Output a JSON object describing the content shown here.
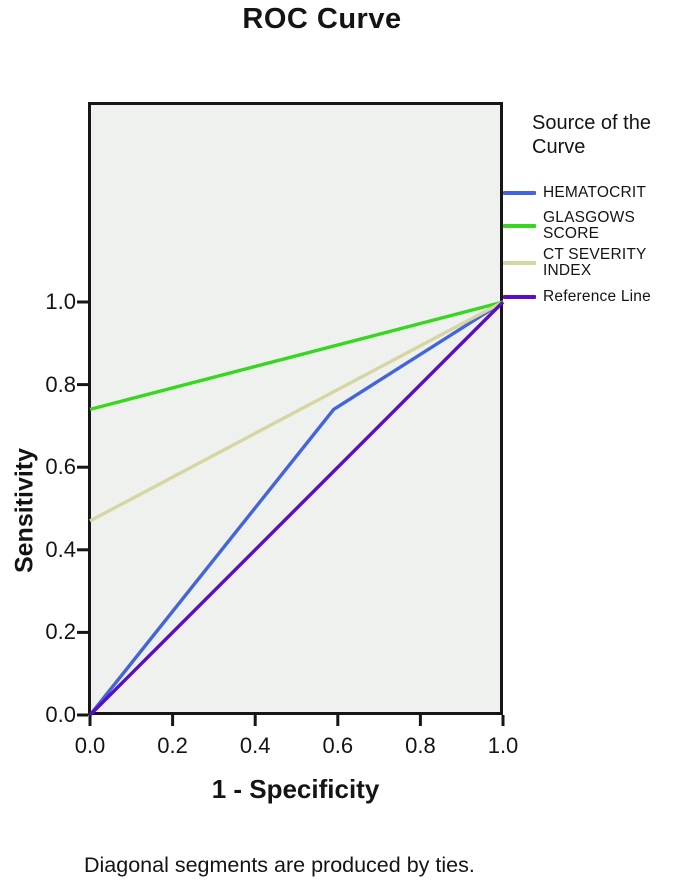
{
  "title": "ROC Curve",
  "footnote": "Diagonal segments are produced by ties.",
  "legend": {
    "title": "Source of the Curve",
    "entries": [
      {
        "label": "HEMATOCRIT",
        "color": "#4164e1"
      },
      {
        "label": "GLASGOWS SCORE",
        "color": "#36d71e"
      },
      {
        "label": "CT SEVERITY INDEX",
        "color": "#d6d6a2"
      },
      {
        "label": "Reference Line",
        "color": "#5b0cc8"
      }
    ]
  },
  "axes": {
    "x": {
      "label": "1 - Specificity",
      "ticks": [
        "0.0",
        "0.2",
        "0.4",
        "0.6",
        "0.8",
        "1.0"
      ]
    },
    "y": {
      "label": "Sensitivity",
      "ticks": [
        "0.0",
        "0.2",
        "0.4",
        "0.6",
        "0.8",
        "1.0"
      ]
    }
  },
  "colors": {
    "axis": "#161616",
    "plot_background": "#eff1ee",
    "hematocrit": "#4164e1",
    "glasgows_score": "#36d71e",
    "ct_severity_index": "#d6d6a2",
    "reference_line": "#5b0cc8"
  },
  "chart_data": {
    "type": "line",
    "title": "ROC Curve",
    "xlabel": "1 - Specificity",
    "ylabel": "Sensitivity",
    "xlim": [
      0,
      1
    ],
    "ylim": [
      0,
      1.48
    ],
    "x_ticks": [
      0.0,
      0.2,
      0.4,
      0.6,
      0.8,
      1.0
    ],
    "y_ticks": [
      0.0,
      0.2,
      0.4,
      0.6,
      0.8,
      1.0
    ],
    "grid": false,
    "legend_position": "right",
    "legend_title": "Source of the Curve",
    "series": [
      {
        "name": "HEMATOCRIT",
        "color": "#4164e1",
        "points": [
          [
            0,
            0
          ],
          [
            0.59,
            0.74
          ],
          [
            1,
            1
          ]
        ]
      },
      {
        "name": "GLASGOWS SCORE",
        "color": "#36d71e",
        "points": [
          [
            0,
            0.74
          ],
          [
            1,
            1
          ]
        ]
      },
      {
        "name": "CT SEVERITY INDEX",
        "color": "#d6d6a2",
        "points": [
          [
            0,
            0.47
          ],
          [
            1,
            1
          ]
        ]
      },
      {
        "name": "Reference Line",
        "color": "#5b0cc8",
        "points": [
          [
            0,
            0
          ],
          [
            1,
            1
          ]
        ]
      }
    ],
    "footnote": "Diagonal segments are produced by ties."
  }
}
